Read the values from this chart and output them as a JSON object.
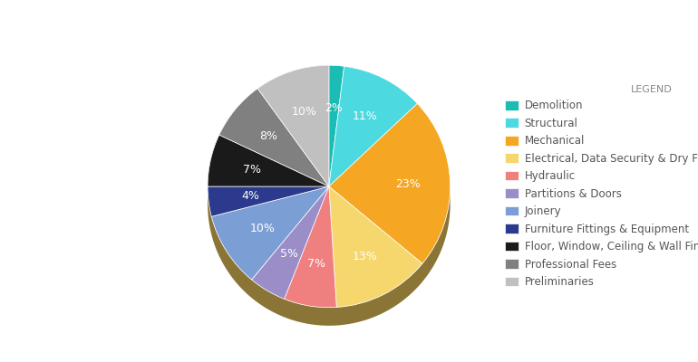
{
  "labels": [
    "Demolition",
    "Structural",
    "Mechanical",
    "Electrical, Data Security & Dry Fire",
    "Hydraulic",
    "Partitions & Doors",
    "Joinery",
    "Furniture Fittings & Equipment",
    "Floor, Window, Ceiling & Wall Finishes and Signage",
    "Professional Fees",
    "Preliminaries"
  ],
  "values": [
    2,
    11,
    23,
    13,
    7,
    5,
    10,
    4,
    7,
    8,
    10
  ],
  "colors": [
    "#1ABCB4",
    "#4DD9E0",
    "#F5A623",
    "#F5D76E",
    "#F08080",
    "#9B8DC8",
    "#7B9FD4",
    "#2B3A8C",
    "#1A1A1A",
    "#808080",
    "#C0C0C0"
  ],
  "legend_title": "LEGEND",
  "background_color": "#ffffff",
  "text_color": "#555555",
  "pct_label_color": "#ffffff",
  "shadow_color": "#8B7536",
  "title": ""
}
